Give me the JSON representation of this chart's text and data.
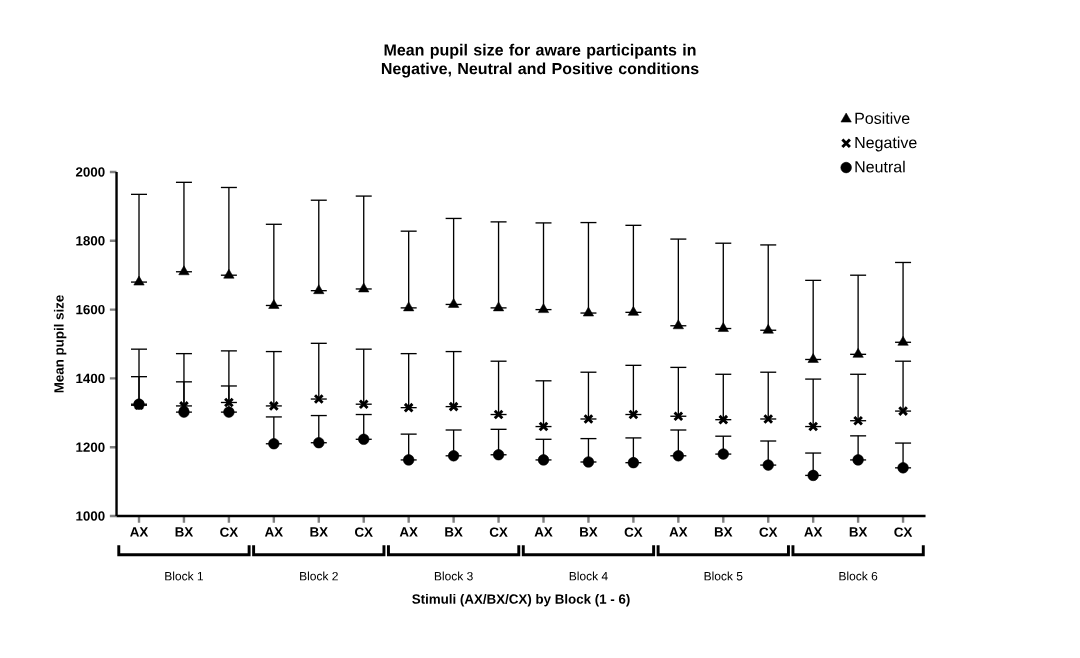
{
  "chart_data": {
    "type": "scatter",
    "title": "Mean pupil size for aware participants in Negative, Neutral and Positive conditions",
    "xlabel": "Stimuli (AX/BX/CX) by Block (1 - 6)",
    "ylabel": "Mean pupil size",
    "categories": [
      "AX",
      "BX",
      "CX",
      "AX",
      "BX",
      "CX",
      "AX",
      "BX",
      "CX",
      "AX",
      "BX",
      "CX",
      "AX",
      "BX",
      "CX",
      "AX",
      "BX",
      "CX"
    ],
    "annotations": [
      "Block 1",
      "Block 2",
      "Block 3",
      "Block 4",
      "Block 5",
      "Block 6"
    ],
    "ylim": [
      1000,
      2000
    ],
    "yticks": [
      1000,
      1200,
      1400,
      1600,
      1800,
      2000
    ],
    "grid": false,
    "legend": "top right",
    "series": [
      {
        "name": "Positive",
        "color": "#000000",
        "marker": "triangle",
        "values": [
          1680,
          1710,
          1700,
          1612,
          1655,
          1660,
          1605,
          1615,
          1605,
          1600,
          1590,
          1592,
          1553,
          1545,
          1540,
          1455,
          1470,
          1505
        ],
        "errors": [
          [
            1680,
            1935
          ],
          [
            1710,
            1970
          ],
          [
            1700,
            1955
          ],
          [
            1612,
            1848
          ],
          [
            1655,
            1918
          ],
          [
            1660,
            1930
          ],
          [
            1605,
            1828
          ],
          [
            1615,
            1865
          ],
          [
            1605,
            1855
          ],
          [
            1600,
            1852
          ],
          [
            1590,
            1853
          ],
          [
            1592,
            1845
          ],
          [
            1553,
            1805
          ],
          [
            1545,
            1793
          ],
          [
            1540,
            1788
          ],
          [
            1455,
            1685
          ],
          [
            1470,
            1700
          ],
          [
            1505,
            1737
          ]
        ]
      },
      {
        "name": "Negative",
        "color": "#000000",
        "marker": "cross",
        "values": [
          1322,
          1320,
          1330,
          1320,
          1340,
          1325,
          1315,
          1318,
          1295,
          1260,
          1282,
          1295,
          1290,
          1280,
          1282,
          1260,
          1277,
          1305
        ],
        "errors": [
          [
            1322,
            1485
          ],
          [
            1320,
            1472
          ],
          [
            1330,
            1480
          ],
          [
            1320,
            1478
          ],
          [
            1340,
            1502
          ],
          [
            1325,
            1485
          ],
          [
            1315,
            1472
          ],
          [
            1318,
            1478
          ],
          [
            1295,
            1450
          ],
          [
            1260,
            1393
          ],
          [
            1282,
            1418
          ],
          [
            1295,
            1438
          ],
          [
            1290,
            1432
          ],
          [
            1280,
            1412
          ],
          [
            1282,
            1418
          ],
          [
            1260,
            1398
          ],
          [
            1277,
            1412
          ],
          [
            1305,
            1450
          ]
        ]
      },
      {
        "name": "Neutral",
        "color": "#000000",
        "marker": "circle",
        "values": [
          1325,
          1302,
          1302,
          1210,
          1213,
          1223,
          1163,
          1175,
          1178,
          1163,
          1157,
          1155,
          1175,
          1180,
          1148,
          1118,
          1163,
          1140
        ],
        "errors": [
          [
            1325,
            1405
          ],
          [
            1302,
            1390
          ],
          [
            1302,
            1378
          ],
          [
            1210,
            1288
          ],
          [
            1213,
            1292
          ],
          [
            1223,
            1295
          ],
          [
            1163,
            1238
          ],
          [
            1175,
            1250
          ],
          [
            1178,
            1252
          ],
          [
            1163,
            1223
          ],
          [
            1157,
            1225
          ],
          [
            1155,
            1227
          ],
          [
            1175,
            1250
          ],
          [
            1180,
            1232
          ],
          [
            1148,
            1218
          ],
          [
            1118,
            1183
          ],
          [
            1163,
            1233
          ],
          [
            1140,
            1212
          ]
        ]
      }
    ]
  }
}
